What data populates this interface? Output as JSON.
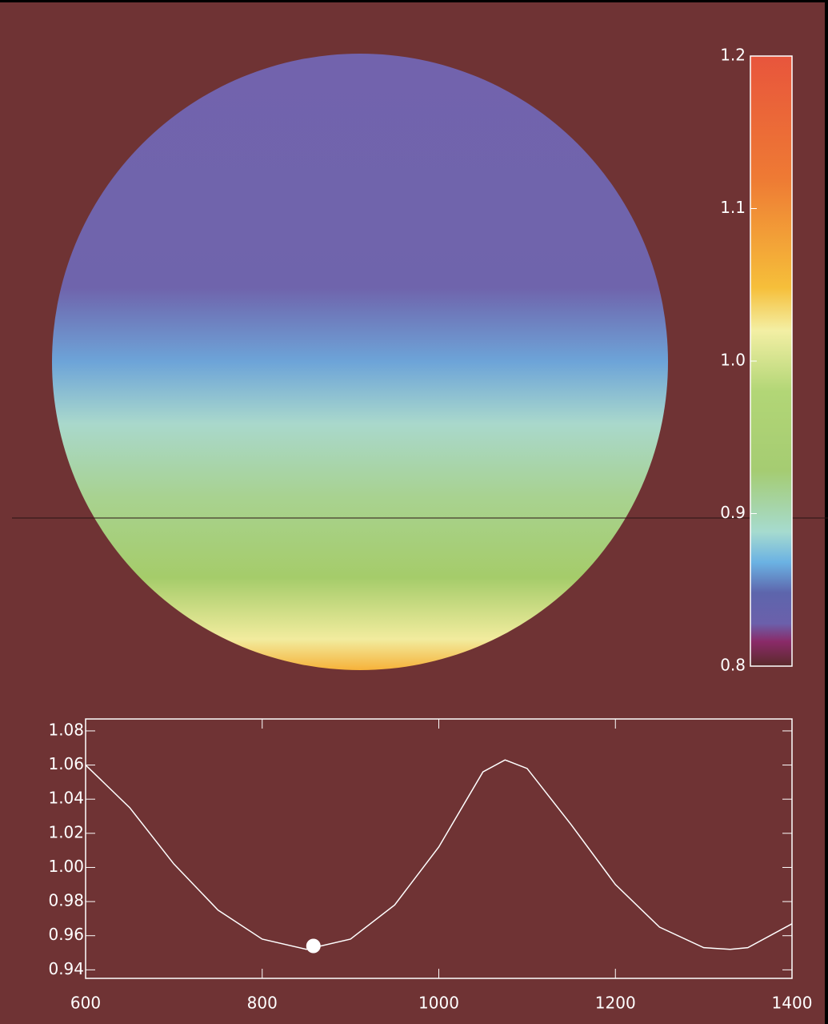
{
  "chart_data": [
    {
      "type": "colorbar",
      "ylim": [
        0.8,
        1.2
      ],
      "yticks": [
        1.2,
        1.1,
        {
          "value": 1.0,
          "label": "1.0"
        },
        0.9,
        0.8
      ]
    },
    {
      "type": "line",
      "x": [
        600,
        650,
        700,
        750,
        800,
        850,
        900,
        950,
        1000,
        1050,
        1075,
        1100,
        1150,
        1200,
        1250,
        1300,
        1330,
        1350,
        1400
      ],
      "series": [
        {
          "color": "#ffffff",
          "values": [
            1.06,
            1.035,
            1.002,
            0.975,
            0.958,
            0.952,
            0.958,
            0.978,
            1.012,
            1.056,
            1.063,
            1.058,
            1.025,
            0.99,
            0.965,
            0.953,
            0.952,
            0.953,
            0.967
          ]
        }
      ],
      "marker": {
        "x": 858,
        "y": 0.954
      },
      "xlim": [
        600,
        1400
      ],
      "ylim": [
        0.935,
        1.087
      ],
      "xticks": [
        600,
        800,
        1000,
        1200,
        1400
      ],
      "yticks": [
        1.08,
        1.06,
        1.04,
        1.02,
        {
          "value": 1.0,
          "label": "1.00"
        },
        0.98,
        0.96,
        0.94
      ]
    }
  ]
}
